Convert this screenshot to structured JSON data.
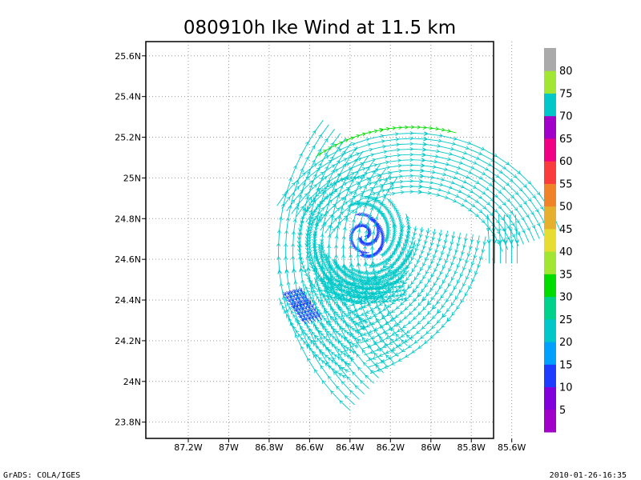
{
  "chart_data": {
    "type": "streamline",
    "title": "080910h Ike Wind at 11.5 km",
    "x_ticks": [
      {
        "value": -87.2,
        "label": "87.2W"
      },
      {
        "value": -87.0,
        "label": "87W"
      },
      {
        "value": -86.8,
        "label": "86.8W"
      },
      {
        "value": -86.6,
        "label": "86.6W"
      },
      {
        "value": -86.4,
        "label": "86.4W"
      },
      {
        "value": -86.2,
        "label": "86.2W"
      },
      {
        "value": -86.0,
        "label": "86W"
      },
      {
        "value": -85.8,
        "label": "85.8W"
      },
      {
        "value": -85.6,
        "label": "85.6W"
      }
    ],
    "y_ticks": [
      {
        "value": 23.8,
        "label": "23.8N"
      },
      {
        "value": 24.0,
        "label": "24N"
      },
      {
        "value": 24.2,
        "label": "24.2N"
      },
      {
        "value": 24.4,
        "label": "24.4N"
      },
      {
        "value": 24.6,
        "label": "24.6N"
      },
      {
        "value": 24.8,
        "label": "24.8N"
      },
      {
        "value": 25.0,
        "label": "25N"
      },
      {
        "value": 25.2,
        "label": "25.2N"
      },
      {
        "value": 25.4,
        "label": "25.4N"
      },
      {
        "value": 25.6,
        "label": "25.6N"
      }
    ],
    "xlim": [
      -87.41,
      -85.69
    ],
    "ylim": [
      23.72,
      25.67
    ],
    "grid": true,
    "vortex_center": {
      "lon": -86.33,
      "lat": 24.72
    },
    "colorbar": {
      "labels": [
        "5",
        "10",
        "15",
        "20",
        "25",
        "30",
        "35",
        "40",
        "45",
        "50",
        "55",
        "60",
        "65",
        "70",
        "75",
        "80"
      ],
      "colors": [
        "#a000c8",
        "#8200dc",
        "#1e3cff",
        "#00a0ff",
        "#00c8c8",
        "#00d28c",
        "#00dc00",
        "#a0e632",
        "#e6dc32",
        "#e6af2d",
        "#f08228",
        "#fa3c3c",
        "#f00082",
        "#a000c8",
        "#00c8c8",
        "#a0e632",
        "#aaaaaa"
      ]
    },
    "streamlines": [
      {
        "region": "vortex-core",
        "color": "#1e3cff",
        "speed": 12
      },
      {
        "region": "inner-spiral",
        "color": "#00c8c8",
        "speed": 25
      },
      {
        "region": "northeast-band",
        "color": "#00c8c8",
        "speed": 25
      },
      {
        "region": "northeast-jet",
        "color": "#00dc00",
        "speed": 35
      },
      {
        "region": "west-band",
        "color": "#00c8c8",
        "speed": 25
      },
      {
        "region": "southwest-band",
        "color": "#00c8c8",
        "speed": 25
      },
      {
        "region": "southwest-blue-patch",
        "color": "#1e3cff",
        "speed": 12
      },
      {
        "region": "southeast-band",
        "color": "#00c8c8",
        "speed": 25
      },
      {
        "region": "south-arc",
        "color": "#00c8c8",
        "speed": 25
      },
      {
        "region": "east-strip",
        "color": "#00c8c8",
        "speed": 25
      }
    ]
  },
  "footer": {
    "left": "GrADS: COLA/IGES",
    "right": "2010-01-26-16:35"
  }
}
